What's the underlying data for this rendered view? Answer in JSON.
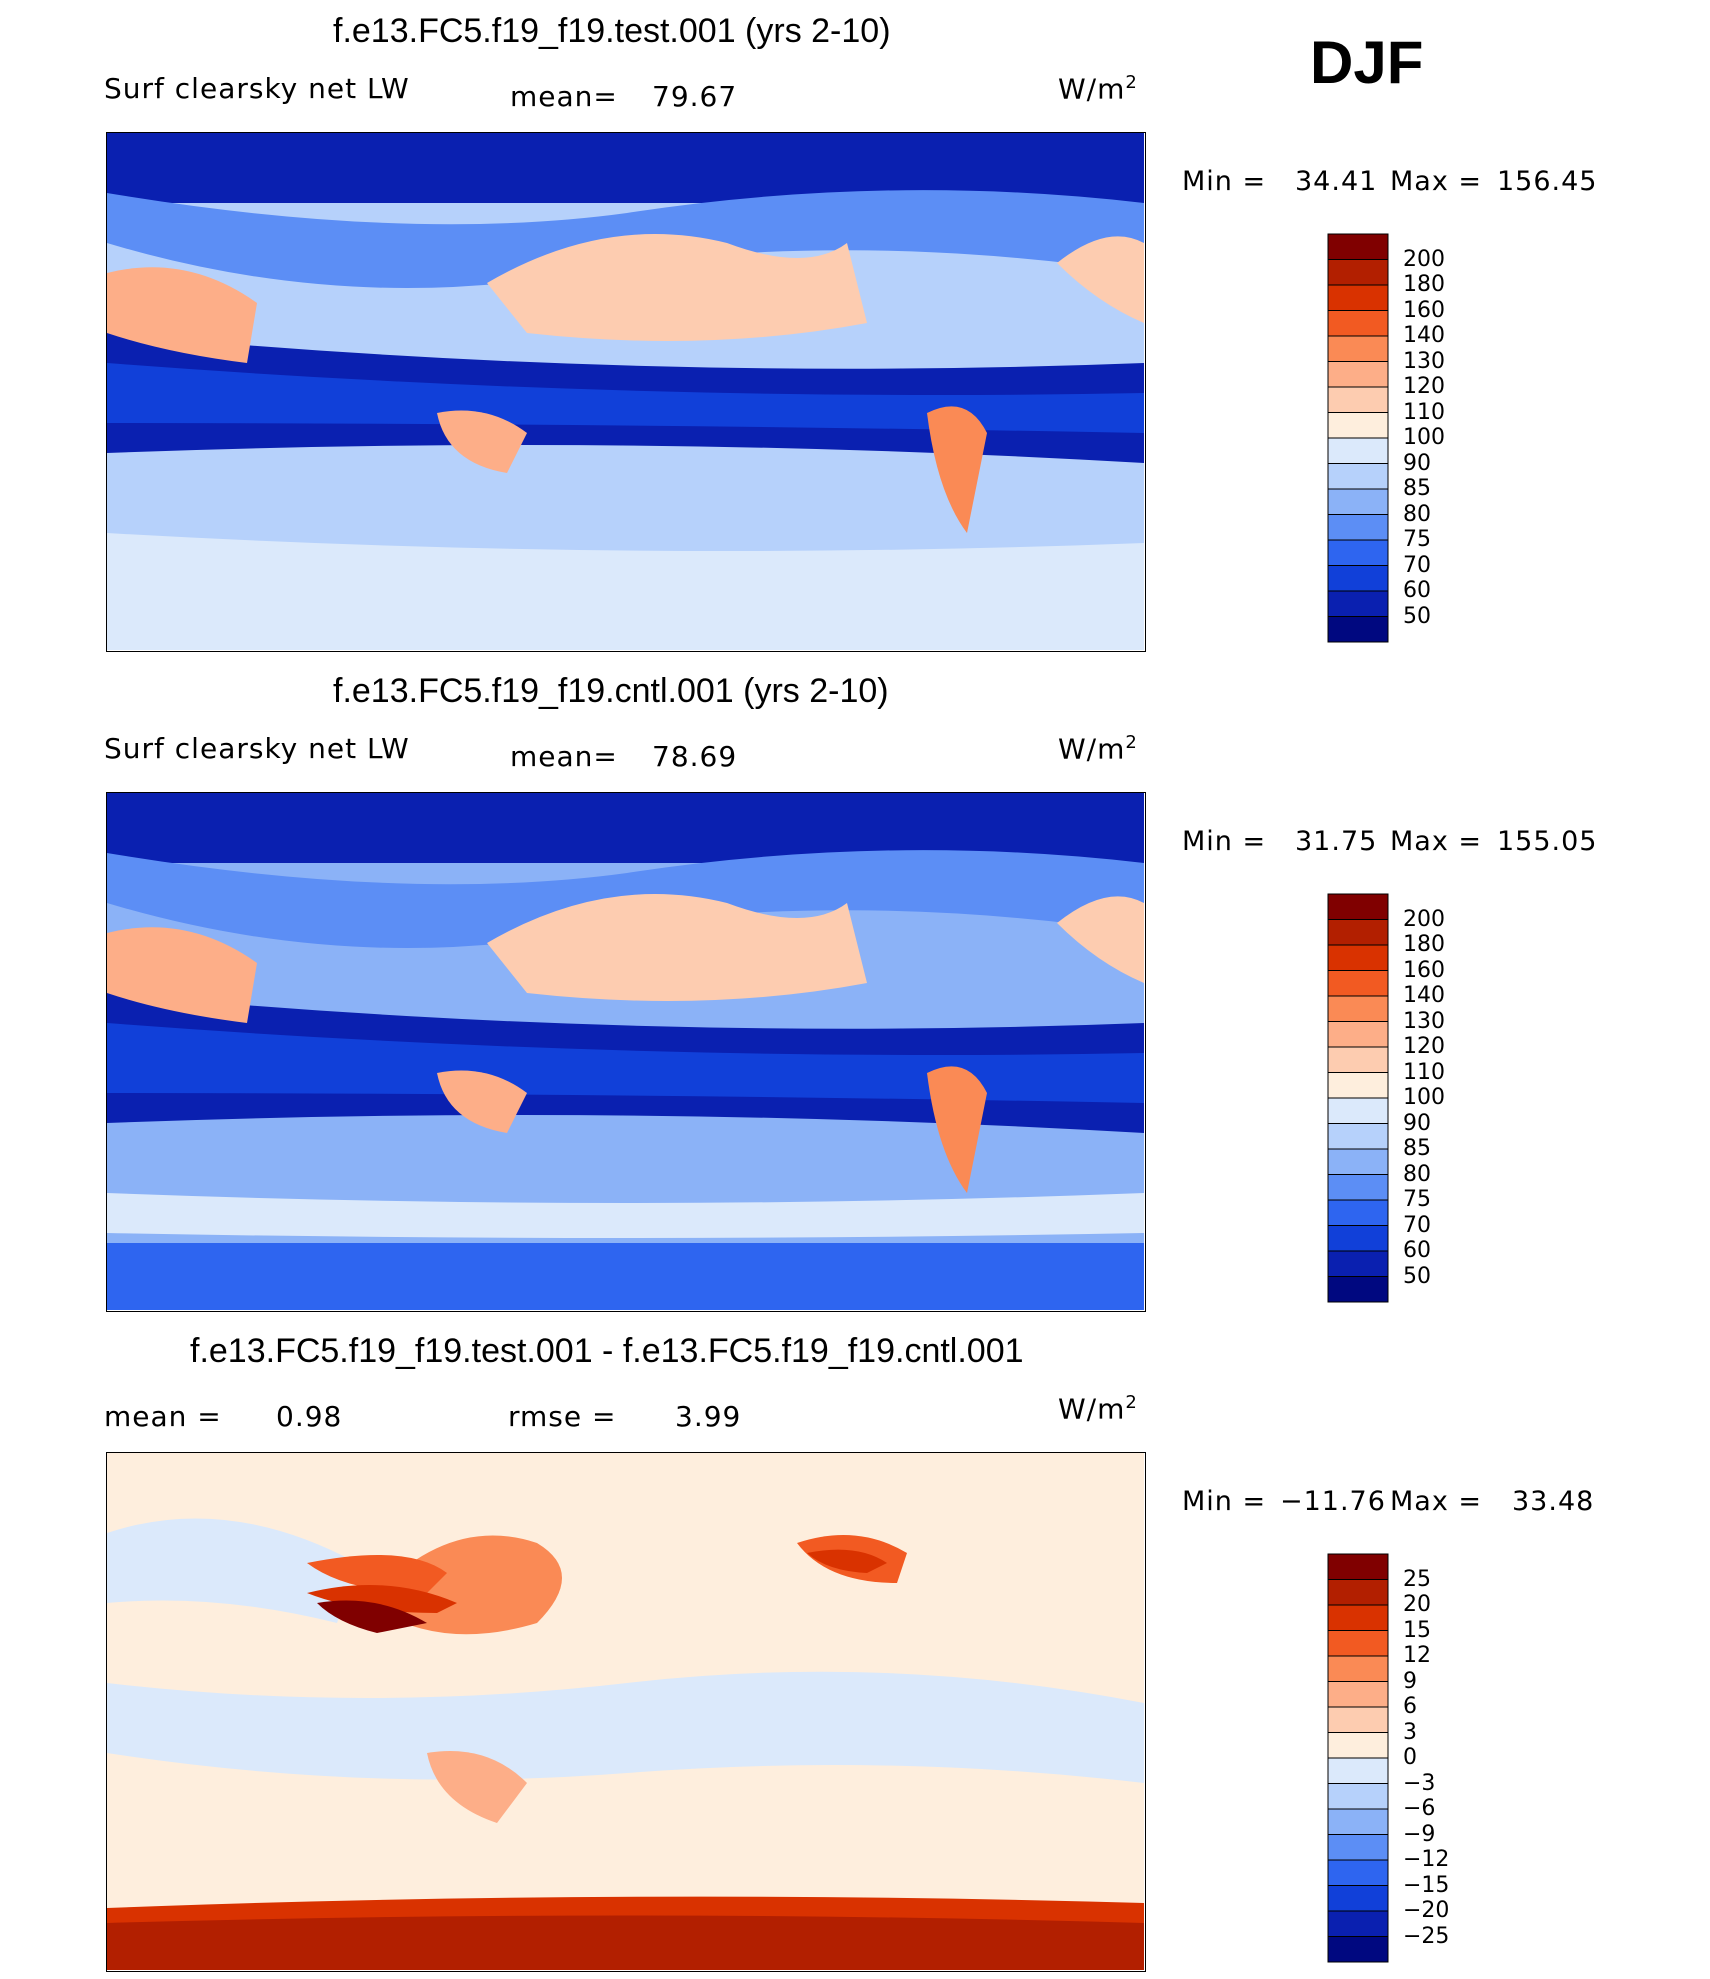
{
  "season": "DJF",
  "chart_data": [
    {
      "type": "heatmap",
      "title": "f.e13.FC5.f19_f19.test.001 (yrs 2-10)",
      "variable": "Surf clearsky net LW",
      "stat_label": "mean=",
      "stat_value": "79.67",
      "units_base": "W/m",
      "units_exp": "2",
      "min_label": "Min  =",
      "min_value": "34.41",
      "max_label": "Max  =",
      "max_value": "156.45",
      "colorbar": {
        "levels": [
          "200",
          "180",
          "160",
          "140",
          "130",
          "120",
          "110",
          "100",
          "90",
          "85",
          "80",
          "75",
          "70",
          "60",
          "50"
        ],
        "colors": [
          "#800000",
          "#b21f00",
          "#d93200",
          "#f25a22",
          "#fa8a55",
          "#fdae88",
          "#fdccb0",
          "#feeedd",
          "#dbe9fb",
          "#b6d1fb",
          "#8bb2f7",
          "#5c8ef5",
          "#2e65f0",
          "#1140d9",
          "#0a20b0",
          "#000880"
        ]
      }
    },
    {
      "type": "heatmap",
      "title": "f.e13.FC5.f19_f19.cntl.001 (yrs 2-10)",
      "variable": "Surf clearsky net LW",
      "stat_label": "mean=",
      "stat_value": "78.69",
      "units_base": "W/m",
      "units_exp": "2",
      "min_label": "Min  =",
      "min_value": "31.75",
      "max_label": "Max  =",
      "max_value": "155.05",
      "colorbar": {
        "levels": [
          "200",
          "180",
          "160",
          "140",
          "130",
          "120",
          "110",
          "100",
          "90",
          "85",
          "80",
          "75",
          "70",
          "60",
          "50"
        ],
        "colors": [
          "#800000",
          "#b21f00",
          "#d93200",
          "#f25a22",
          "#fa8a55",
          "#fdae88",
          "#fdccb0",
          "#feeedd",
          "#dbe9fb",
          "#b6d1fb",
          "#8bb2f7",
          "#5c8ef5",
          "#2e65f0",
          "#1140d9",
          "#0a20b0",
          "#000880"
        ]
      }
    },
    {
      "type": "heatmap",
      "title": "f.e13.FC5.f19_f19.test.001 - f.e13.FC5.f19_f19.cntl.001",
      "mean_label": "mean  =",
      "mean_value": "0.98",
      "rmse_label": "rmse  =",
      "rmse_value": "3.99",
      "units_base": "W/m",
      "units_exp": "2",
      "min_label": "Min  =",
      "min_value": "−11.76",
      "max_label": "Max  =",
      "max_value": "33.48",
      "colorbar": {
        "levels": [
          "25",
          "20",
          "15",
          "12",
          "9",
          "6",
          "3",
          "0",
          "−3",
          "−6",
          "−9",
          "−12",
          "−15",
          "−20",
          "−25"
        ],
        "colors": [
          "#800000",
          "#b21f00",
          "#d93200",
          "#f25a22",
          "#fa8a55",
          "#fdae88",
          "#fdccb0",
          "#feeedd",
          "#dbe9fb",
          "#b6d1fb",
          "#8bb2f7",
          "#5c8ef5",
          "#2e65f0",
          "#1140d9",
          "#0a20b0",
          "#000880"
        ]
      }
    }
  ]
}
